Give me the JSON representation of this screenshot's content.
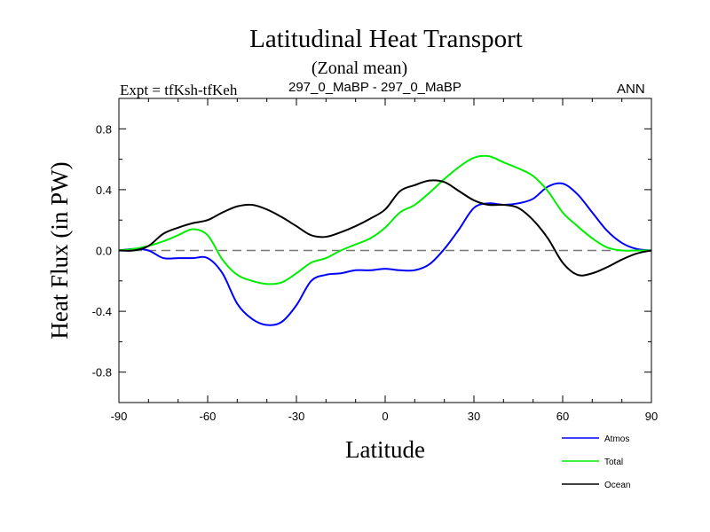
{
  "chart_data": {
    "type": "line",
    "title": "Latitudinal Heat Transport",
    "subtitle": "(Zonal mean)",
    "left_label": "Expt = tfKsh-tfKeh",
    "center_label": "297_0_MaBP - 297_0_MaBP",
    "right_label": "ANN",
    "xlabel": "Latitude",
    "ylabel": "Heat Flux (in PW)",
    "xlim": [
      -90,
      90
    ],
    "ylim": [
      -1.0,
      1.0
    ],
    "xticks": [
      -90,
      -60,
      -30,
      0,
      30,
      60,
      90
    ],
    "xtick_labels": [
      "-90",
      "-60",
      "-30",
      "0",
      "30",
      "60",
      "90"
    ],
    "yticks": [
      -0.8,
      -0.4,
      0.0,
      0.4,
      0.8
    ],
    "ytick_labels": [
      "-0.8",
      "-0.4",
      "0.0",
      "0.4",
      "0.8"
    ],
    "zero_line": "dashed",
    "legend_position": "bottom-right",
    "series": [
      {
        "name": "Atmos",
        "color": "#0000ff",
        "x": [
          -90,
          -85,
          -80,
          -75,
          -70,
          -65,
          -60,
          -55,
          -50,
          -45,
          -40,
          -35,
          -30,
          -25,
          -20,
          -15,
          -10,
          -5,
          0,
          5,
          10,
          15,
          20,
          25,
          30,
          35,
          40,
          45,
          50,
          55,
          60,
          65,
          70,
          75,
          80,
          85,
          90
        ],
        "y": [
          0.0,
          0.01,
          0.0,
          -0.05,
          -0.05,
          -0.05,
          -0.05,
          -0.15,
          -0.35,
          -0.45,
          -0.49,
          -0.47,
          -0.36,
          -0.2,
          -0.16,
          -0.15,
          -0.13,
          -0.13,
          -0.12,
          -0.13,
          -0.13,
          -0.09,
          0.01,
          0.14,
          0.28,
          0.31,
          0.3,
          0.31,
          0.34,
          0.42,
          0.44,
          0.37,
          0.25,
          0.13,
          0.05,
          0.01,
          0.0
        ]
      },
      {
        "name": "Total",
        "color": "#00ee00",
        "x": [
          -90,
          -85,
          -80,
          -75,
          -70,
          -65,
          -60,
          -55,
          -50,
          -45,
          -40,
          -35,
          -30,
          -25,
          -20,
          -15,
          -10,
          -5,
          0,
          5,
          10,
          15,
          20,
          25,
          30,
          35,
          40,
          45,
          50,
          55,
          60,
          65,
          70,
          75,
          80,
          85,
          90
        ],
        "y": [
          0.0,
          0.01,
          0.03,
          0.06,
          0.1,
          0.14,
          0.1,
          -0.06,
          -0.16,
          -0.2,
          -0.22,
          -0.21,
          -0.15,
          -0.08,
          -0.05,
          0.0,
          0.04,
          0.08,
          0.15,
          0.25,
          0.3,
          0.38,
          0.47,
          0.55,
          0.61,
          0.62,
          0.58,
          0.54,
          0.49,
          0.39,
          0.25,
          0.16,
          0.08,
          0.02,
          0.0,
          0.0,
          0.0
        ]
      },
      {
        "name": "Ocean",
        "color": "#000000",
        "x": [
          -90,
          -85,
          -80,
          -75,
          -70,
          -65,
          -60,
          -55,
          -50,
          -45,
          -40,
          -35,
          -30,
          -25,
          -20,
          -15,
          -10,
          -5,
          0,
          5,
          10,
          15,
          20,
          25,
          30,
          35,
          40,
          45,
          50,
          55,
          60,
          65,
          70,
          75,
          80,
          85,
          90
        ],
        "y": [
          0.0,
          0.0,
          0.03,
          0.11,
          0.15,
          0.18,
          0.2,
          0.25,
          0.29,
          0.3,
          0.27,
          0.22,
          0.16,
          0.1,
          0.09,
          0.12,
          0.16,
          0.21,
          0.27,
          0.39,
          0.43,
          0.46,
          0.45,
          0.39,
          0.33,
          0.3,
          0.3,
          0.28,
          0.2,
          0.08,
          -0.08,
          -0.16,
          -0.15,
          -0.11,
          -0.06,
          -0.02,
          0.0
        ]
      }
    ]
  }
}
